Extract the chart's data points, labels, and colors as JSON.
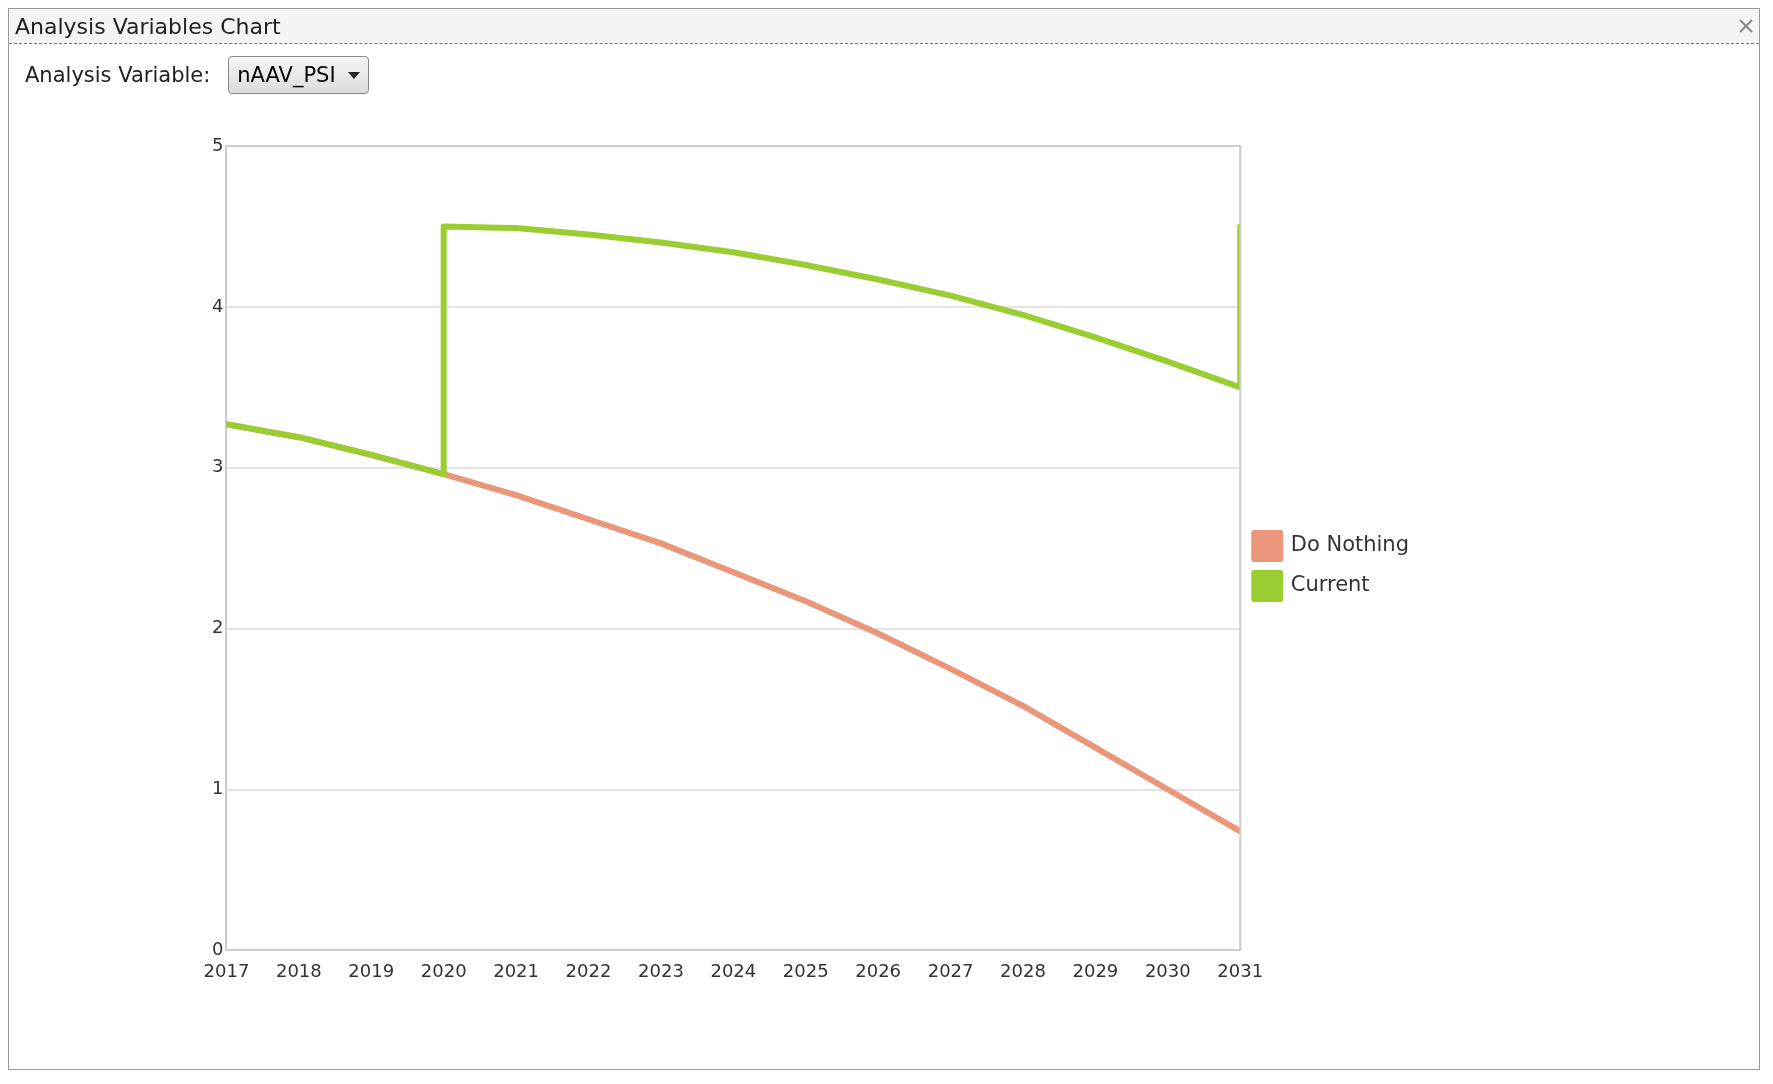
{
  "chart_data": {
    "type": "line",
    "title": "Analysis Variables Chart",
    "annotations": [
      "Analysis Variable:",
      "nAAV_PSI"
    ],
    "xlim": [
      2017,
      2031
    ],
    "xticks": [
      2017,
      2018,
      2019,
      2020,
      2021,
      2022,
      2023,
      2024,
      2025,
      2026,
      2027,
      2028,
      2029,
      2030,
      2031
    ],
    "ylim": [
      0,
      5
    ],
    "yticks": [
      0,
      1,
      2,
      3,
      4,
      5
    ],
    "grid": "y",
    "legend": "right",
    "marker": "none",
    "line_style": "solid",
    "series": [
      {
        "name": "Do Nothing",
        "color": "#e9967a",
        "x": [
          2017,
          2018,
          2019,
          2020,
          2021,
          2022,
          2023,
          2024,
          2025,
          2026,
          2027,
          2028,
          2029,
          2030,
          2031
        ],
        "values": [
          3.27,
          3.19,
          3.08,
          2.96,
          2.83,
          2.68,
          2.53,
          2.35,
          2.17,
          1.97,
          1.75,
          1.52,
          1.26,
          1.0,
          0.74
        ]
      },
      {
        "name": "Current",
        "color": "#9acd32",
        "x": [
          2017,
          2018,
          2019,
          2020,
          2020,
          2021,
          2022,
          2023,
          2024,
          2025,
          2026,
          2027,
          2028,
          2029,
          2030,
          2031,
          2031
        ],
        "values": [
          3.27,
          3.19,
          3.08,
          2.96,
          4.5,
          4.49,
          4.45,
          4.4,
          4.34,
          4.26,
          4.17,
          4.07,
          3.95,
          3.81,
          3.66,
          3.5,
          4.5
        ]
      }
    ]
  }
}
